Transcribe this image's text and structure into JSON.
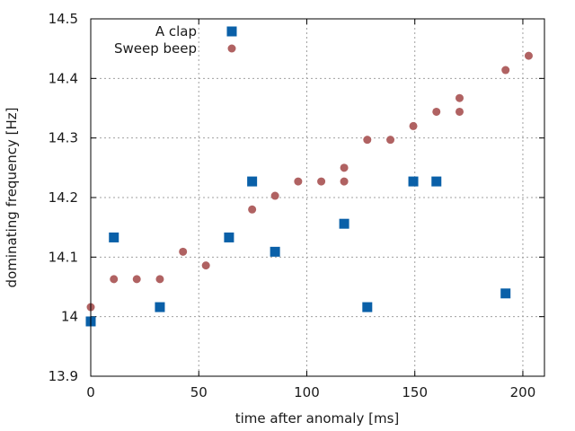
{
  "chart_data": {
    "type": "scatter",
    "xlabel": "time after anomaly [ms]",
    "ylabel": "dominating frequency [Hz]",
    "xlim": [
      0,
      210
    ],
    "ylim": [
      13.9,
      14.5
    ],
    "x_ticks": [
      0,
      50,
      100,
      150,
      200
    ],
    "y_ticks": [
      13.9,
      14,
      14.1,
      14.2,
      14.3,
      14.4,
      14.5
    ],
    "x_tick_labels": [
      "0",
      "50",
      "100",
      "150",
      "200"
    ],
    "y_tick_labels": [
      "13.9",
      "14",
      "14.1",
      "14.2",
      "14.3",
      "14.4",
      "14.5"
    ],
    "grid": true,
    "legend_position": "top-left",
    "series": [
      {
        "name": "A clap",
        "marker": "square",
        "color": "#0a60a8",
        "points": [
          [
            0,
            13.992
          ],
          [
            10.7,
            14.133
          ],
          [
            32,
            14.016
          ],
          [
            64,
            14.133
          ],
          [
            74.7,
            14.227
          ],
          [
            85.3,
            14.109
          ],
          [
            117.3,
            14.156
          ],
          [
            128,
            14.016
          ],
          [
            149.3,
            14.227
          ],
          [
            160,
            14.227
          ],
          [
            192,
            14.039
          ]
        ]
      },
      {
        "name": "Sweep beep",
        "marker": "circle",
        "color": "#b06262",
        "points": [
          [
            0,
            14.016
          ],
          [
            10.7,
            14.063
          ],
          [
            21.3,
            14.063
          ],
          [
            32,
            14.063
          ],
          [
            42.7,
            14.109
          ],
          [
            53.3,
            14.086
          ],
          [
            74.7,
            14.18
          ],
          [
            85.3,
            14.203
          ],
          [
            96,
            14.227
          ],
          [
            106.7,
            14.227
          ],
          [
            117.3,
            14.25
          ],
          [
            117.3,
            14.227
          ],
          [
            128,
            14.297
          ],
          [
            138.7,
            14.297
          ],
          [
            149.3,
            14.32
          ],
          [
            160,
            14.344
          ],
          [
            170.7,
            14.367
          ],
          [
            170.7,
            14.344
          ],
          [
            192,
            14.414
          ],
          [
            202.7,
            14.438
          ]
        ]
      }
    ]
  }
}
